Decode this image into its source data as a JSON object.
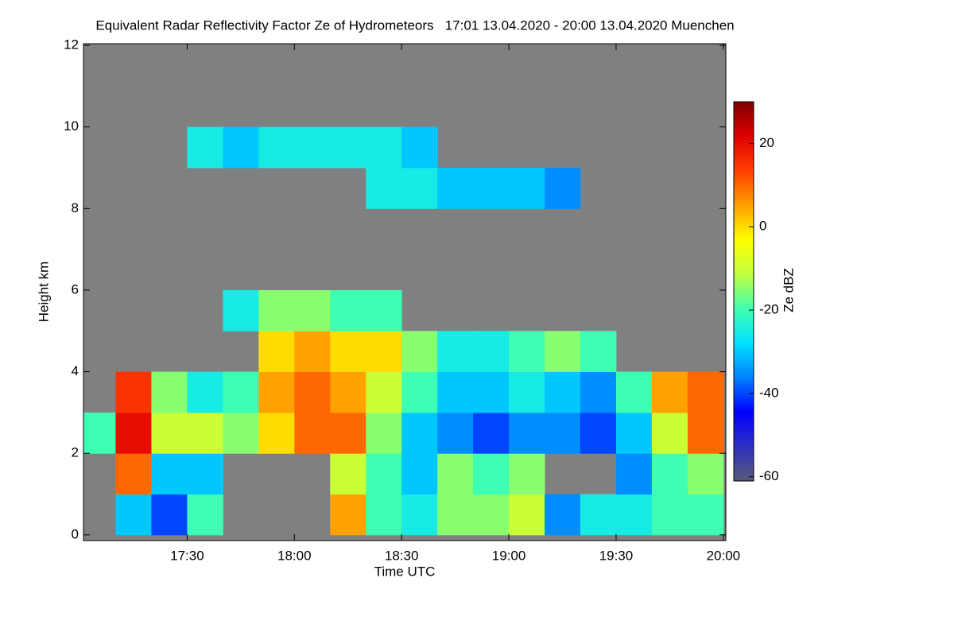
{
  "chart_data": {
    "type": "heatmap",
    "title": "Equivalent Radar Reflectivity Factor Ze of Hydrometeors   17:01 13.04.2020 - 20:00 13.04.2020 Muenchen",
    "x_label": "Time UTC",
    "y_label": "Height km",
    "colorbar_label": "Ze dBZ",
    "background": "#808080",
    "xlim": [
      17.0167,
      20.0117
    ],
    "ylim": [
      -0.14,
      12.04
    ],
    "xticks": [
      {
        "value": 17.5,
        "label": "17:30"
      },
      {
        "value": 18,
        "label": "18:00"
      },
      {
        "value": 18.5,
        "label": "18:30"
      },
      {
        "value": 19,
        "label": "19:00"
      },
      {
        "value": 19.5,
        "label": "19:30"
      },
      {
        "value": 20,
        "label": "20:00"
      }
    ],
    "yticks": [
      0,
      2,
      4,
      6,
      8,
      10,
      12
    ],
    "zlim": [
      -61,
      30
    ],
    "zticks": [
      -60,
      -40,
      -20,
      0,
      20
    ],
    "colormap": [
      "#5a5a78",
      "#3030c0",
      "#0000ff",
      "#0080ff",
      "#00e0ff",
      "#40ffb0",
      "#c0ff40",
      "#ffff00",
      "#ffa000",
      "#ff4000",
      "#e00000",
      "#800000"
    ],
    "x_bins": [
      17,
      17.1667,
      17.3333,
      17.5,
      17.6667,
      17.8333,
      18,
      18.1667,
      18.3333,
      18.5,
      18.6667,
      18.8333,
      19,
      19.1667,
      19.3333,
      19.5,
      19.6667,
      19.8333,
      20
    ],
    "y_bins": [
      0,
      1,
      2,
      3,
      4,
      5,
      6,
      7,
      8,
      9,
      10,
      11,
      12
    ],
    "z": [
      [
        null,
        -30,
        -40,
        -20,
        null,
        null,
        null,
        5,
        -20,
        -25,
        -15,
        -15,
        -10,
        -35,
        -25,
        -25,
        -20,
        -20
      ],
      [
        null,
        10,
        -30,
        -30,
        null,
        null,
        null,
        -10,
        -20,
        -30,
        -15,
        -20,
        -15,
        null,
        null,
        -35,
        -20,
        -15
      ],
      [
        -20,
        20,
        -10,
        -10,
        -15,
        0,
        10,
        10,
        -15,
        -30,
        -35,
        -40,
        -35,
        -35,
        -40,
        -30,
        -10,
        10
      ],
      [
        null,
        15,
        -15,
        -25,
        -20,
        5,
        10,
        5,
        -10,
        -20,
        -30,
        -30,
        -25,
        -30,
        -35,
        -20,
        5,
        10
      ],
      [
        null,
        null,
        null,
        null,
        null,
        0,
        5,
        0,
        0,
        -15,
        -25,
        -25,
        -20,
        -15,
        -20,
        null,
        null,
        null
      ],
      [
        null,
        null,
        null,
        null,
        -25,
        -15,
        -15,
        -20,
        -20,
        null,
        null,
        null,
        null,
        null,
        null,
        null,
        null,
        null
      ],
      [
        null,
        null,
        null,
        null,
        null,
        null,
        null,
        null,
        null,
        null,
        null,
        null,
        null,
        null,
        null,
        null,
        null,
        null
      ],
      [
        null,
        null,
        null,
        null,
        null,
        null,
        null,
        null,
        null,
        null,
        null,
        null,
        null,
        null,
        null,
        null,
        null,
        null
      ],
      [
        null,
        null,
        null,
        null,
        null,
        null,
        null,
        null,
        -25,
        -25,
        -30,
        -30,
        -30,
        -35,
        null,
        null,
        null,
        null
      ],
      [
        null,
        null,
        null,
        -25,
        -30,
        -25,
        -25,
        -25,
        -25,
        -30,
        null,
        null,
        null,
        null,
        null,
        null,
        null,
        null
      ],
      [
        null,
        null,
        null,
        null,
        null,
        null,
        null,
        null,
        null,
        null,
        null,
        null,
        null,
        null,
        null,
        null,
        null,
        null
      ],
      [
        null,
        null,
        null,
        null,
        null,
        null,
        null,
        null,
        null,
        null,
        null,
        null,
        null,
        null,
        null,
        null,
        null,
        null
      ]
    ]
  }
}
